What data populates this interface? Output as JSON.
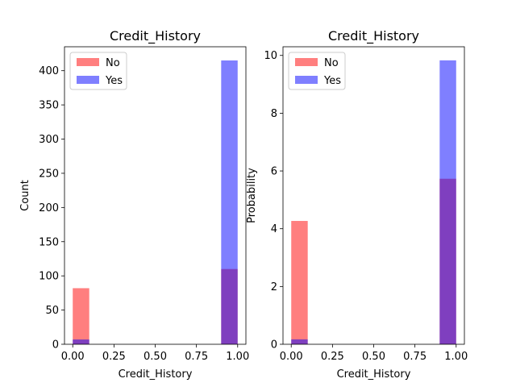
{
  "chart_data": [
    {
      "type": "histogram",
      "title": "Credit_History",
      "xlabel": "Credit_History",
      "ylabel": "Count",
      "xlim": [
        -0.05,
        1.05
      ],
      "ylim": [
        0,
        435
      ],
      "xticks": [
        0.0,
        0.25,
        0.5,
        0.75,
        1.0
      ],
      "xtick_labels": [
        "0.00",
        "0.25",
        "0.50",
        "0.75",
        "1.00"
      ],
      "yticks": [
        0,
        50,
        100,
        150,
        200,
        250,
        300,
        350,
        400
      ],
      "ytick_labels": [
        "0",
        "50",
        "100",
        "150",
        "200",
        "250",
        "300",
        "350",
        "400"
      ],
      "bin_edges": [
        0.0,
        0.1,
        0.2,
        0.3,
        0.4,
        0.5,
        0.6,
        0.7,
        0.8,
        0.9,
        1.0
      ],
      "series": [
        {
          "name": "No",
          "color": "#ff0000",
          "alpha": 0.5,
          "values": [
            82,
            0,
            0,
            0,
            0,
            0,
            0,
            0,
            0,
            110
          ]
        },
        {
          "name": "Yes",
          "color": "#0000ff",
          "alpha": 0.5,
          "values": [
            7,
            0,
            0,
            0,
            0,
            0,
            0,
            0,
            0,
            415
          ]
        }
      ],
      "legend": "upper-left"
    },
    {
      "type": "histogram",
      "title": "Credit_History",
      "xlabel": "Credit_History",
      "ylabel": "Probability",
      "xlim": [
        -0.05,
        1.05
      ],
      "ylim": [
        0,
        10.3
      ],
      "xticks": [
        0.0,
        0.25,
        0.5,
        0.75,
        1.0
      ],
      "xtick_labels": [
        "0.00",
        "0.25",
        "0.50",
        "0.75",
        "1.00"
      ],
      "yticks": [
        0,
        2,
        4,
        6,
        8,
        10
      ],
      "ytick_labels": [
        "0",
        "2",
        "4",
        "6",
        "8",
        "10"
      ],
      "bin_edges": [
        0.0,
        0.1,
        0.2,
        0.3,
        0.4,
        0.5,
        0.6,
        0.7,
        0.8,
        0.9,
        1.0
      ],
      "series": [
        {
          "name": "No",
          "color": "#ff0000",
          "alpha": 0.5,
          "values": [
            4.27,
            0,
            0,
            0,
            0,
            0,
            0,
            0,
            0,
            5.73
          ]
        },
        {
          "name": "Yes",
          "color": "#0000ff",
          "alpha": 0.5,
          "values": [
            0.17,
            0,
            0,
            0,
            0,
            0,
            0,
            0,
            0,
            9.83
          ]
        }
      ],
      "legend": "upper-left"
    }
  ]
}
